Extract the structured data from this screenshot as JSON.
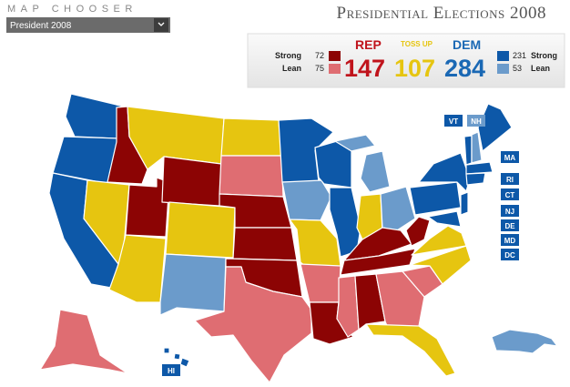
{
  "header": {
    "section": "MAP CHOOSER",
    "dropdown": "President 2008",
    "title": "Presidential Elections 2008"
  },
  "tally": {
    "rep": {
      "label": "REP",
      "total": 147,
      "strong": {
        "label": "Strong",
        "count": 72
      },
      "lean": {
        "label": "Lean",
        "count": 75
      }
    },
    "tossup": {
      "label": "TOSS UP",
      "total": 107
    },
    "dem": {
      "label": "DEM",
      "total": 284,
      "strong": {
        "label": "Strong",
        "count": 231
      },
      "lean": {
        "label": "Lean",
        "count": 53
      }
    }
  },
  "map_labels": [
    "VT",
    "NH",
    "MA",
    "RI",
    "CT",
    "NJ",
    "DE",
    "MD",
    "DC",
    "HI"
  ]
}
